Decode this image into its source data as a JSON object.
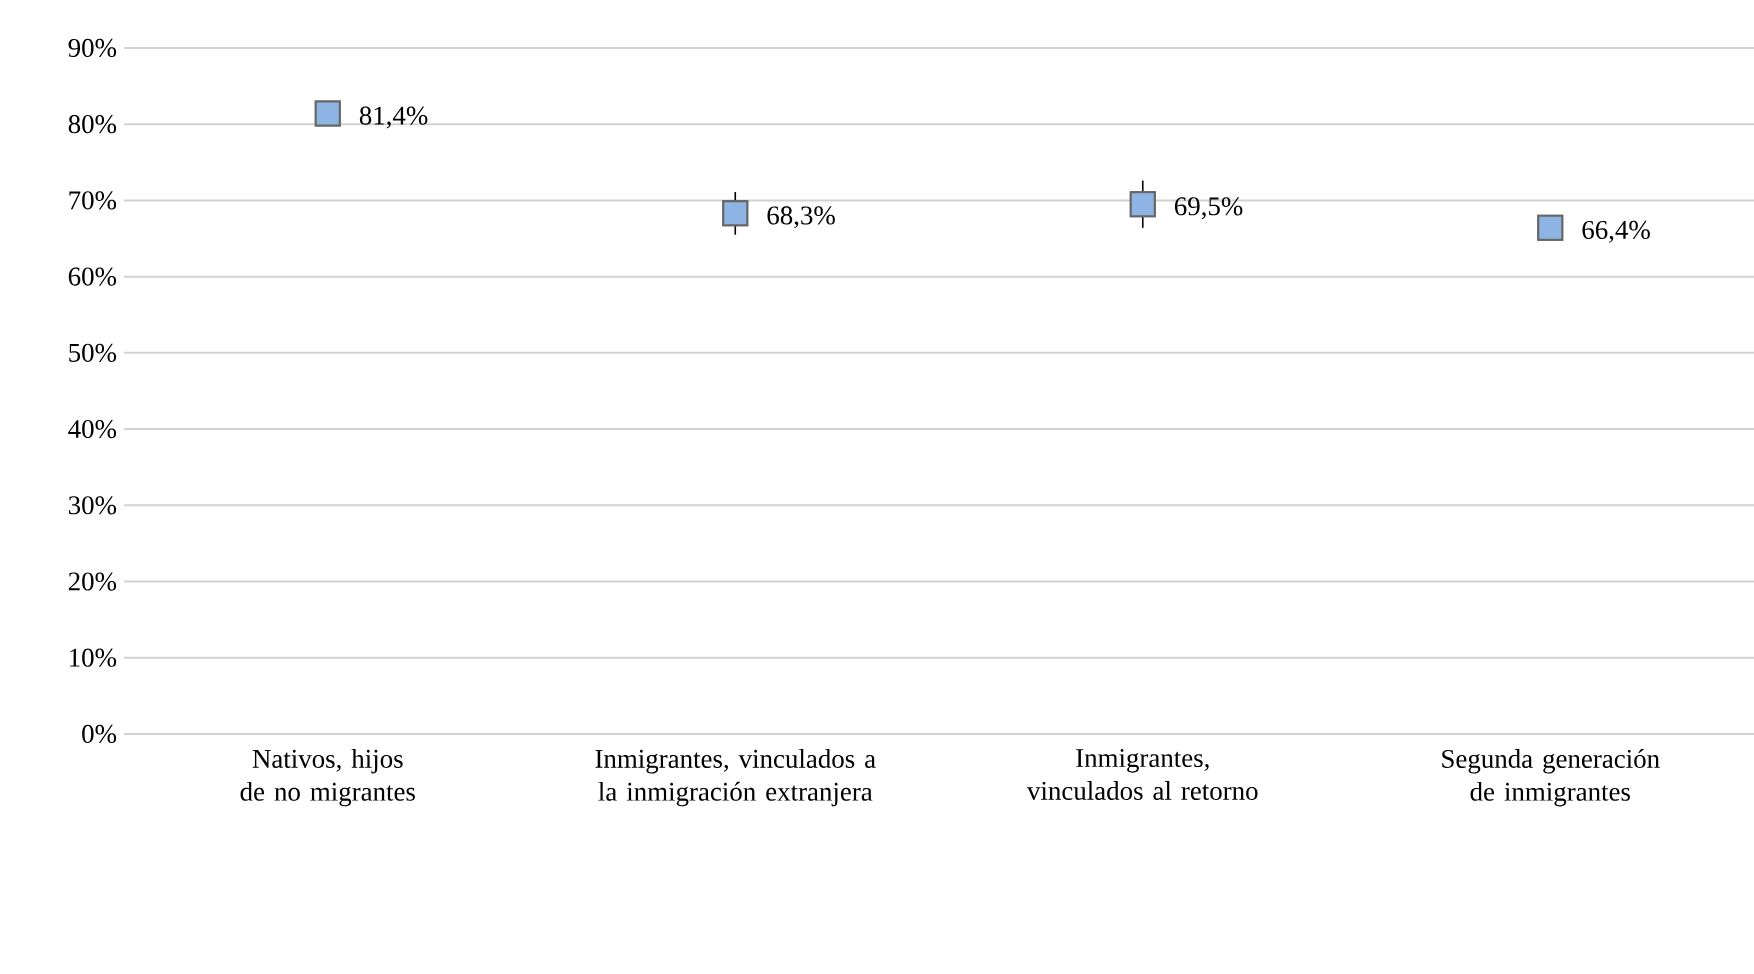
{
  "chart_data": {
    "type": "scatter",
    "categories": [
      "Nativos, hijos de no migrantes",
      "Inmigrantes, vinculados a la inmigración extranjera",
      "Inmigrantes, vinculados al retorno",
      "Segunda generación de inmigrantes"
    ],
    "values": [
      81.4,
      68.3,
      69.5,
      66.4
    ],
    "errors": [
      null,
      2.8,
      3.1,
      null
    ],
    "value_labels": [
      "81,4%",
      "68,3%",
      "69,5%",
      "66,4%"
    ],
    "color": "#8db4e2",
    "marker": "square",
    "ylim": [
      0,
      90
    ],
    "yticks": [
      {
        "value": 0,
        "label": "0%"
      },
      {
        "value": 10,
        "label": "10%"
      },
      {
        "value": 20,
        "label": "20%"
      },
      {
        "value": 30,
        "label": "30%"
      },
      {
        "value": 40,
        "label": "40%"
      },
      {
        "value": 50,
        "label": "50%"
      },
      {
        "value": 60,
        "label": "60%"
      },
      {
        "value": 70,
        "label": "70%"
      },
      {
        "value": 80,
        "label": "80%"
      },
      {
        "value": 90,
        "label": "90%"
      }
    ],
    "grid": "y"
  }
}
